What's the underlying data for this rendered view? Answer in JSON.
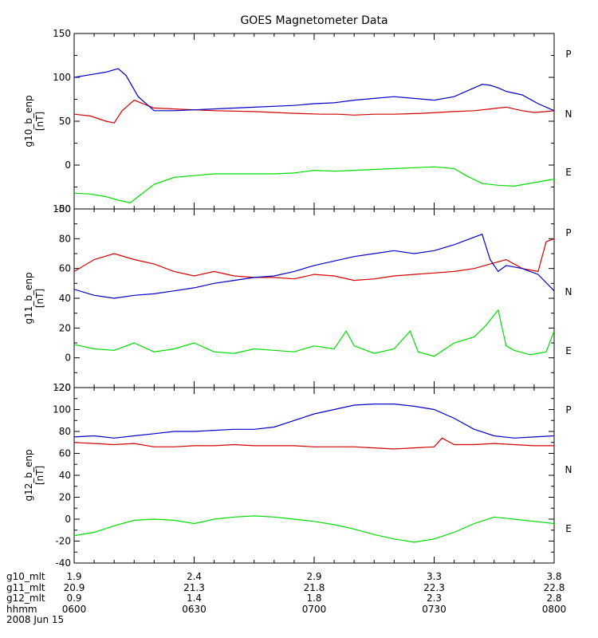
{
  "chart_data": {
    "title": "GOES Magnetometer Data",
    "type": "line",
    "colors": {
      "P": "#d40000",
      "N": "#00dd00",
      "E": "#0000c8"
    },
    "panels": [
      {
        "ylabel": "g10_b_enp",
        "unit": "[nT]",
        "ylim": [
          -50,
          150
        ],
        "yticks": [
          -50,
          0,
          50,
          100,
          150
        ],
        "series": [
          {
            "name": "P",
            "x": [
              0,
              4,
              8,
              10,
              12,
              15,
              20,
              25,
              35,
              45,
              55,
              62,
              66,
              70,
              75,
              80,
              87,
              95,
              100,
              104,
              108,
              112,
              115,
              118,
              120
            ],
            "y": [
              58,
              56,
              50,
              48,
              62,
              74,
              65,
              64,
              62,
              61,
              59,
              58,
              58,
              57,
              58,
              58,
              59,
              61,
              62,
              64,
              66,
              62,
              60,
              61,
              62
            ]
          },
          {
            "name": "N",
            "x": [
              0,
              4,
              8,
              11,
              14,
              20,
              25,
              35,
              45,
              50,
              55,
              60,
              65,
              70,
              75,
              80,
              85,
              90,
              95,
              98,
              102,
              106,
              110,
              115,
              120
            ],
            "y": [
              -32,
              -33,
              -36,
              -40,
              -43,
              -22,
              -14,
              -10,
              -10,
              -10,
              -9,
              -6,
              -7,
              -6,
              -5,
              -4,
              -3,
              -2,
              -4,
              -12,
              -21,
              -23,
              -24,
              -20,
              -16
            ]
          },
          {
            "name": "E",
            "x": [
              0,
              4,
              8,
              11,
              13,
              16,
              20,
              25,
              35,
              45,
              55,
              60,
              65,
              70,
              75,
              80,
              85,
              90,
              95,
              98,
              102,
              104,
              106,
              108,
              112,
              116,
              120
            ],
            "y": [
              100,
              103,
              106,
              110,
              102,
              78,
              62,
              62,
              64,
              66,
              68,
              70,
              71,
              74,
              76,
              78,
              76,
              74,
              78,
              84,
              92,
              91,
              88,
              84,
              80,
              70,
              62
            ]
          }
        ]
      },
      {
        "ylabel": "g11_b_enp",
        "unit": "[nT]",
        "ylim": [
          -20,
          100
        ],
        "yticks": [
          -20,
          0,
          20,
          40,
          60,
          80,
          100
        ],
        "series": [
          {
            "name": "P",
            "x": [
              0,
              5,
              10,
              15,
              20,
              25,
              30,
              35,
              40,
              45,
              50,
              55,
              60,
              65,
              70,
              75,
              80,
              85,
              90,
              95,
              100,
              104,
              108,
              112,
              116,
              118,
              120
            ],
            "y": [
              58,
              66,
              70,
              66,
              63,
              58,
              55,
              58,
              55,
              54,
              54,
              53,
              56,
              55,
              52,
              53,
              55,
              56,
              57,
              58,
              60,
              63,
              66,
              60,
              58,
              78,
              80
            ]
          },
          {
            "name": "N",
            "x": [
              0,
              5,
              10,
              15,
              20,
              25,
              30,
              35,
              40,
              45,
              50,
              55,
              60,
              65,
              68,
              70,
              75,
              80,
              84,
              86,
              90,
              95,
              100,
              103,
              106,
              108,
              110,
              114,
              118,
              120
            ],
            "y": [
              9,
              6,
              5,
              10,
              4,
              6,
              10,
              4,
              3,
              6,
              5,
              4,
              8,
              6,
              18,
              8,
              3,
              6,
              18,
              4,
              1,
              10,
              14,
              22,
              32,
              8,
              5,
              2,
              4,
              18
            ]
          },
          {
            "name": "E",
            "x": [
              0,
              5,
              10,
              15,
              20,
              25,
              30,
              35,
              40,
              45,
              50,
              55,
              60,
              65,
              70,
              75,
              80,
              85,
              90,
              95,
              99,
              102,
              104,
              106,
              108,
              112,
              116,
              120
            ],
            "y": [
              46,
              42,
              40,
              42,
              43,
              45,
              47,
              50,
              52,
              54,
              55,
              58,
              62,
              65,
              68,
              70,
              72,
              70,
              72,
              76,
              80,
              83,
              66,
              58,
              62,
              60,
              56,
              45
            ]
          }
        ]
      },
      {
        "ylabel": "g12_b_enp",
        "unit": "[nT]",
        "ylim": [
          -40,
          120
        ],
        "yticks": [
          -40,
          -20,
          0,
          20,
          40,
          60,
          80,
          100,
          120
        ],
        "series": [
          {
            "name": "P",
            "x": [
              0,
              5,
              10,
              15,
              20,
              25,
              30,
              35,
              40,
              45,
              50,
              55,
              60,
              65,
              70,
              75,
              80,
              85,
              90,
              92,
              95,
              100,
              105,
              110,
              115,
              120
            ],
            "y": [
              70,
              69,
              68,
              69,
              66,
              66,
              67,
              67,
              68,
              67,
              67,
              67,
              66,
              66,
              66,
              65,
              64,
              65,
              66,
              74,
              68,
              68,
              69,
              68,
              67,
              67
            ]
          },
          {
            "name": "N",
            "x": [
              0,
              5,
              10,
              15,
              20,
              25,
              30,
              35,
              40,
              45,
              50,
              55,
              60,
              65,
              70,
              75,
              80,
              85,
              90,
              95,
              100,
              105,
              110,
              115,
              120
            ],
            "y": [
              -15,
              -12,
              -6,
              -1,
              0,
              -1,
              -4,
              0,
              2,
              3,
              2,
              0,
              -2,
              -5,
              -9,
              -14,
              -18,
              -21,
              -18,
              -12,
              -4,
              2,
              0,
              -2,
              -4
            ]
          },
          {
            "name": "E",
            "x": [
              0,
              5,
              10,
              15,
              20,
              25,
              30,
              35,
              40,
              45,
              50,
              55,
              60,
              65,
              70,
              75,
              80,
              85,
              90,
              95,
              100,
              105,
              110,
              115,
              120
            ],
            "y": [
              75,
              76,
              74,
              76,
              78,
              80,
              80,
              81,
              82,
              82,
              84,
              90,
              96,
              100,
              104,
              105,
              105,
              103,
              100,
              92,
              82,
              76,
              74,
              75,
              76
            ]
          }
        ]
      }
    ],
    "x_range_minutes": [
      0,
      120
    ],
    "x_tick_minutes": [
      0,
      30,
      60,
      90,
      120
    ],
    "x_minor_tick_minutes": [
      5,
      10,
      15,
      20,
      25,
      35,
      40,
      45,
      50,
      55,
      65,
      70,
      75,
      80,
      85,
      95,
      100,
      105,
      110,
      115
    ],
    "xaxis_rows": [
      {
        "label": "g10_mlt",
        "values": [
          "1.9",
          "2.4",
          "2.9",
          "3.3",
          "3.8"
        ]
      },
      {
        "label": "g11_mlt",
        "values": [
          "20.9",
          "21.3",
          "21.8",
          "22.3",
          "22.8"
        ]
      },
      {
        "label": "g12_mlt",
        "values": [
          "0.9",
          "1.4",
          "1.8",
          "2.3",
          "2.8"
        ]
      },
      {
        "label": "hhmm",
        "values": [
          "0600",
          "0630",
          "0700",
          "0730",
          "0800"
        ]
      }
    ],
    "date": "2008 Jun 15",
    "legend": [
      "P",
      "N",
      "E"
    ]
  }
}
